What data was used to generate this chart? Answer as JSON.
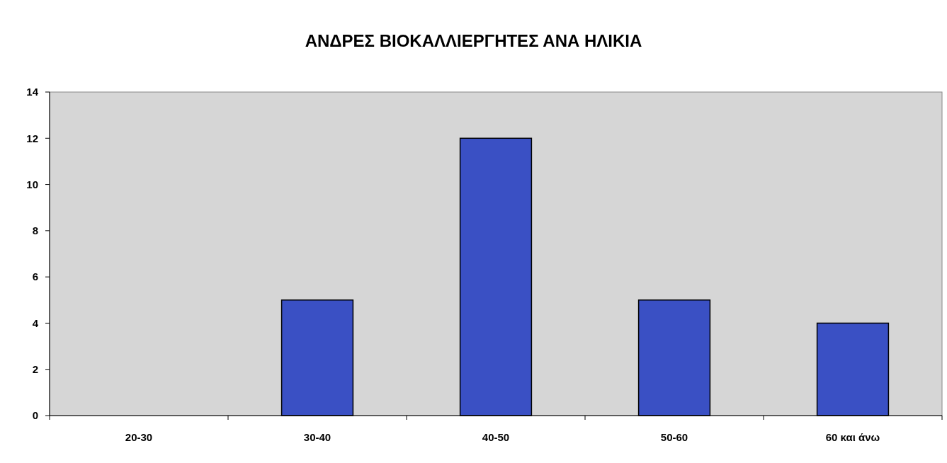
{
  "chart_data": {
    "type": "bar",
    "title": "ΑΝΔΡΕΣ ΒΙΟΚΑΛΛΙΕΡΓΗΤΕΣ ΑΝΑ ΗΛΙΚΙΑ",
    "categories": [
      "20-30",
      "30-40",
      "40-50",
      "50-60",
      "60 και άνω"
    ],
    "values": [
      0,
      5,
      12,
      5,
      4
    ],
    "color": "#3a50c4",
    "ylim": [
      0,
      14
    ],
    "yticks": [
      0,
      2,
      4,
      6,
      8,
      10,
      12,
      14
    ],
    "grid": false
  }
}
